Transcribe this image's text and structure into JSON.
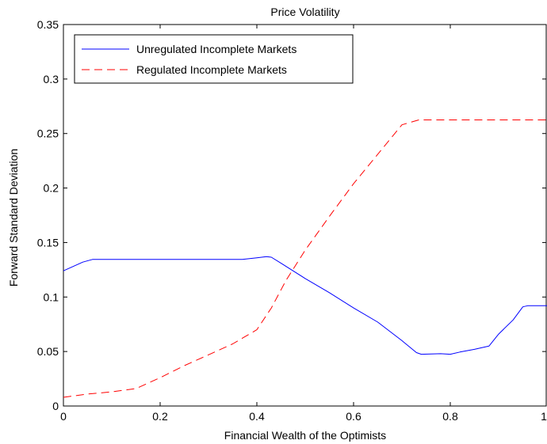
{
  "chart_data": {
    "type": "line",
    "title": "Price Volatility",
    "xlabel": "Financial Wealth of the Optimists",
    "ylabel": "Forward Standard Deviation",
    "xlim": [
      0,
      1
    ],
    "ylim": [
      0,
      0.35
    ],
    "xticks": [
      0,
      0.2,
      0.4,
      0.6,
      0.8,
      1
    ],
    "xtick_labels": [
      "0",
      "0.2",
      "0.4",
      "0.6",
      "0.8",
      "1"
    ],
    "yticks": [
      0,
      0.05,
      0.1,
      0.15,
      0.2,
      0.25,
      0.3,
      0.35
    ],
    "ytick_labels": [
      "0",
      "0.05",
      "0.1",
      "0.15",
      "0.2",
      "0.25",
      "0.3",
      "0.35"
    ],
    "grid": false,
    "legend_position": "top-left",
    "series": [
      {
        "name": "Unregulated Incomplete Markets",
        "color": "#0000ff",
        "style": "solid",
        "x": [
          0,
          0.02,
          0.04,
          0.06,
          0.1,
          0.2,
          0.3,
          0.37,
          0.4,
          0.42,
          0.43,
          0.45,
          0.5,
          0.55,
          0.6,
          0.65,
          0.7,
          0.73,
          0.74,
          0.76,
          0.78,
          0.8,
          0.82,
          0.85,
          0.88,
          0.9,
          0.93,
          0.95,
          0.96,
          1.0
        ],
        "y": [
          0.124,
          0.128,
          0.132,
          0.1345,
          0.1345,
          0.1345,
          0.1345,
          0.1345,
          0.136,
          0.137,
          0.1365,
          0.131,
          0.117,
          0.104,
          0.09,
          0.077,
          0.06,
          0.049,
          0.0475,
          0.0477,
          0.048,
          0.0475,
          0.0495,
          0.052,
          0.055,
          0.066,
          0.079,
          0.091,
          0.092,
          0.092
        ]
      },
      {
        "name": "Regulated Incomplete Markets",
        "color": "#ff0000",
        "style": "dashed",
        "x": [
          0,
          0.05,
          0.1,
          0.15,
          0.2,
          0.25,
          0.3,
          0.35,
          0.4,
          0.43,
          0.46,
          0.5,
          0.55,
          0.6,
          0.65,
          0.7,
          0.735,
          0.8,
          0.9,
          1.0
        ],
        "y": [
          0.008,
          0.011,
          0.013,
          0.016,
          0.026,
          0.037,
          0.047,
          0.057,
          0.07,
          0.09,
          0.115,
          0.143,
          0.174,
          0.204,
          0.231,
          0.258,
          0.2625,
          0.2625,
          0.2625,
          0.2625
        ]
      }
    ]
  }
}
